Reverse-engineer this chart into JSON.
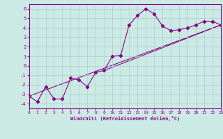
{
  "xlabel": "Windchill (Refroidissement éolien,°C)",
  "bg_color": "#cceae4",
  "grid_color": "#aacccc",
  "line_color": "#880088",
  "xlim": [
    0,
    23
  ],
  "ylim": [
    -4.5,
    6.5
  ],
  "xticks": [
    0,
    1,
    2,
    3,
    4,
    5,
    6,
    7,
    8,
    9,
    10,
    11,
    12,
    13,
    14,
    15,
    16,
    17,
    18,
    19,
    20,
    21,
    22,
    23
  ],
  "yticks": [
    -4,
    -3,
    -2,
    -1,
    0,
    1,
    2,
    3,
    4,
    5,
    6
  ],
  "curve_x": [
    0,
    1,
    2,
    3,
    4,
    5,
    6,
    7,
    8,
    9,
    10,
    11,
    12,
    13,
    14,
    15,
    16,
    17,
    18,
    19,
    20,
    21,
    22,
    23
  ],
  "curve_y": [
    -3.2,
    -3.8,
    -2.2,
    -3.5,
    -3.5,
    -1.3,
    -1.5,
    -2.2,
    -0.7,
    -0.5,
    1.0,
    1.1,
    4.3,
    5.3,
    6.0,
    5.5,
    4.2,
    3.7,
    3.8,
    4.0,
    4.3,
    4.7,
    4.7,
    4.3
  ],
  "line1_x": [
    0,
    23
  ],
  "line1_y": [
    -3.2,
    4.3
  ],
  "line2_x": [
    9,
    23
  ],
  "line2_y": [
    -0.5,
    4.3
  ]
}
